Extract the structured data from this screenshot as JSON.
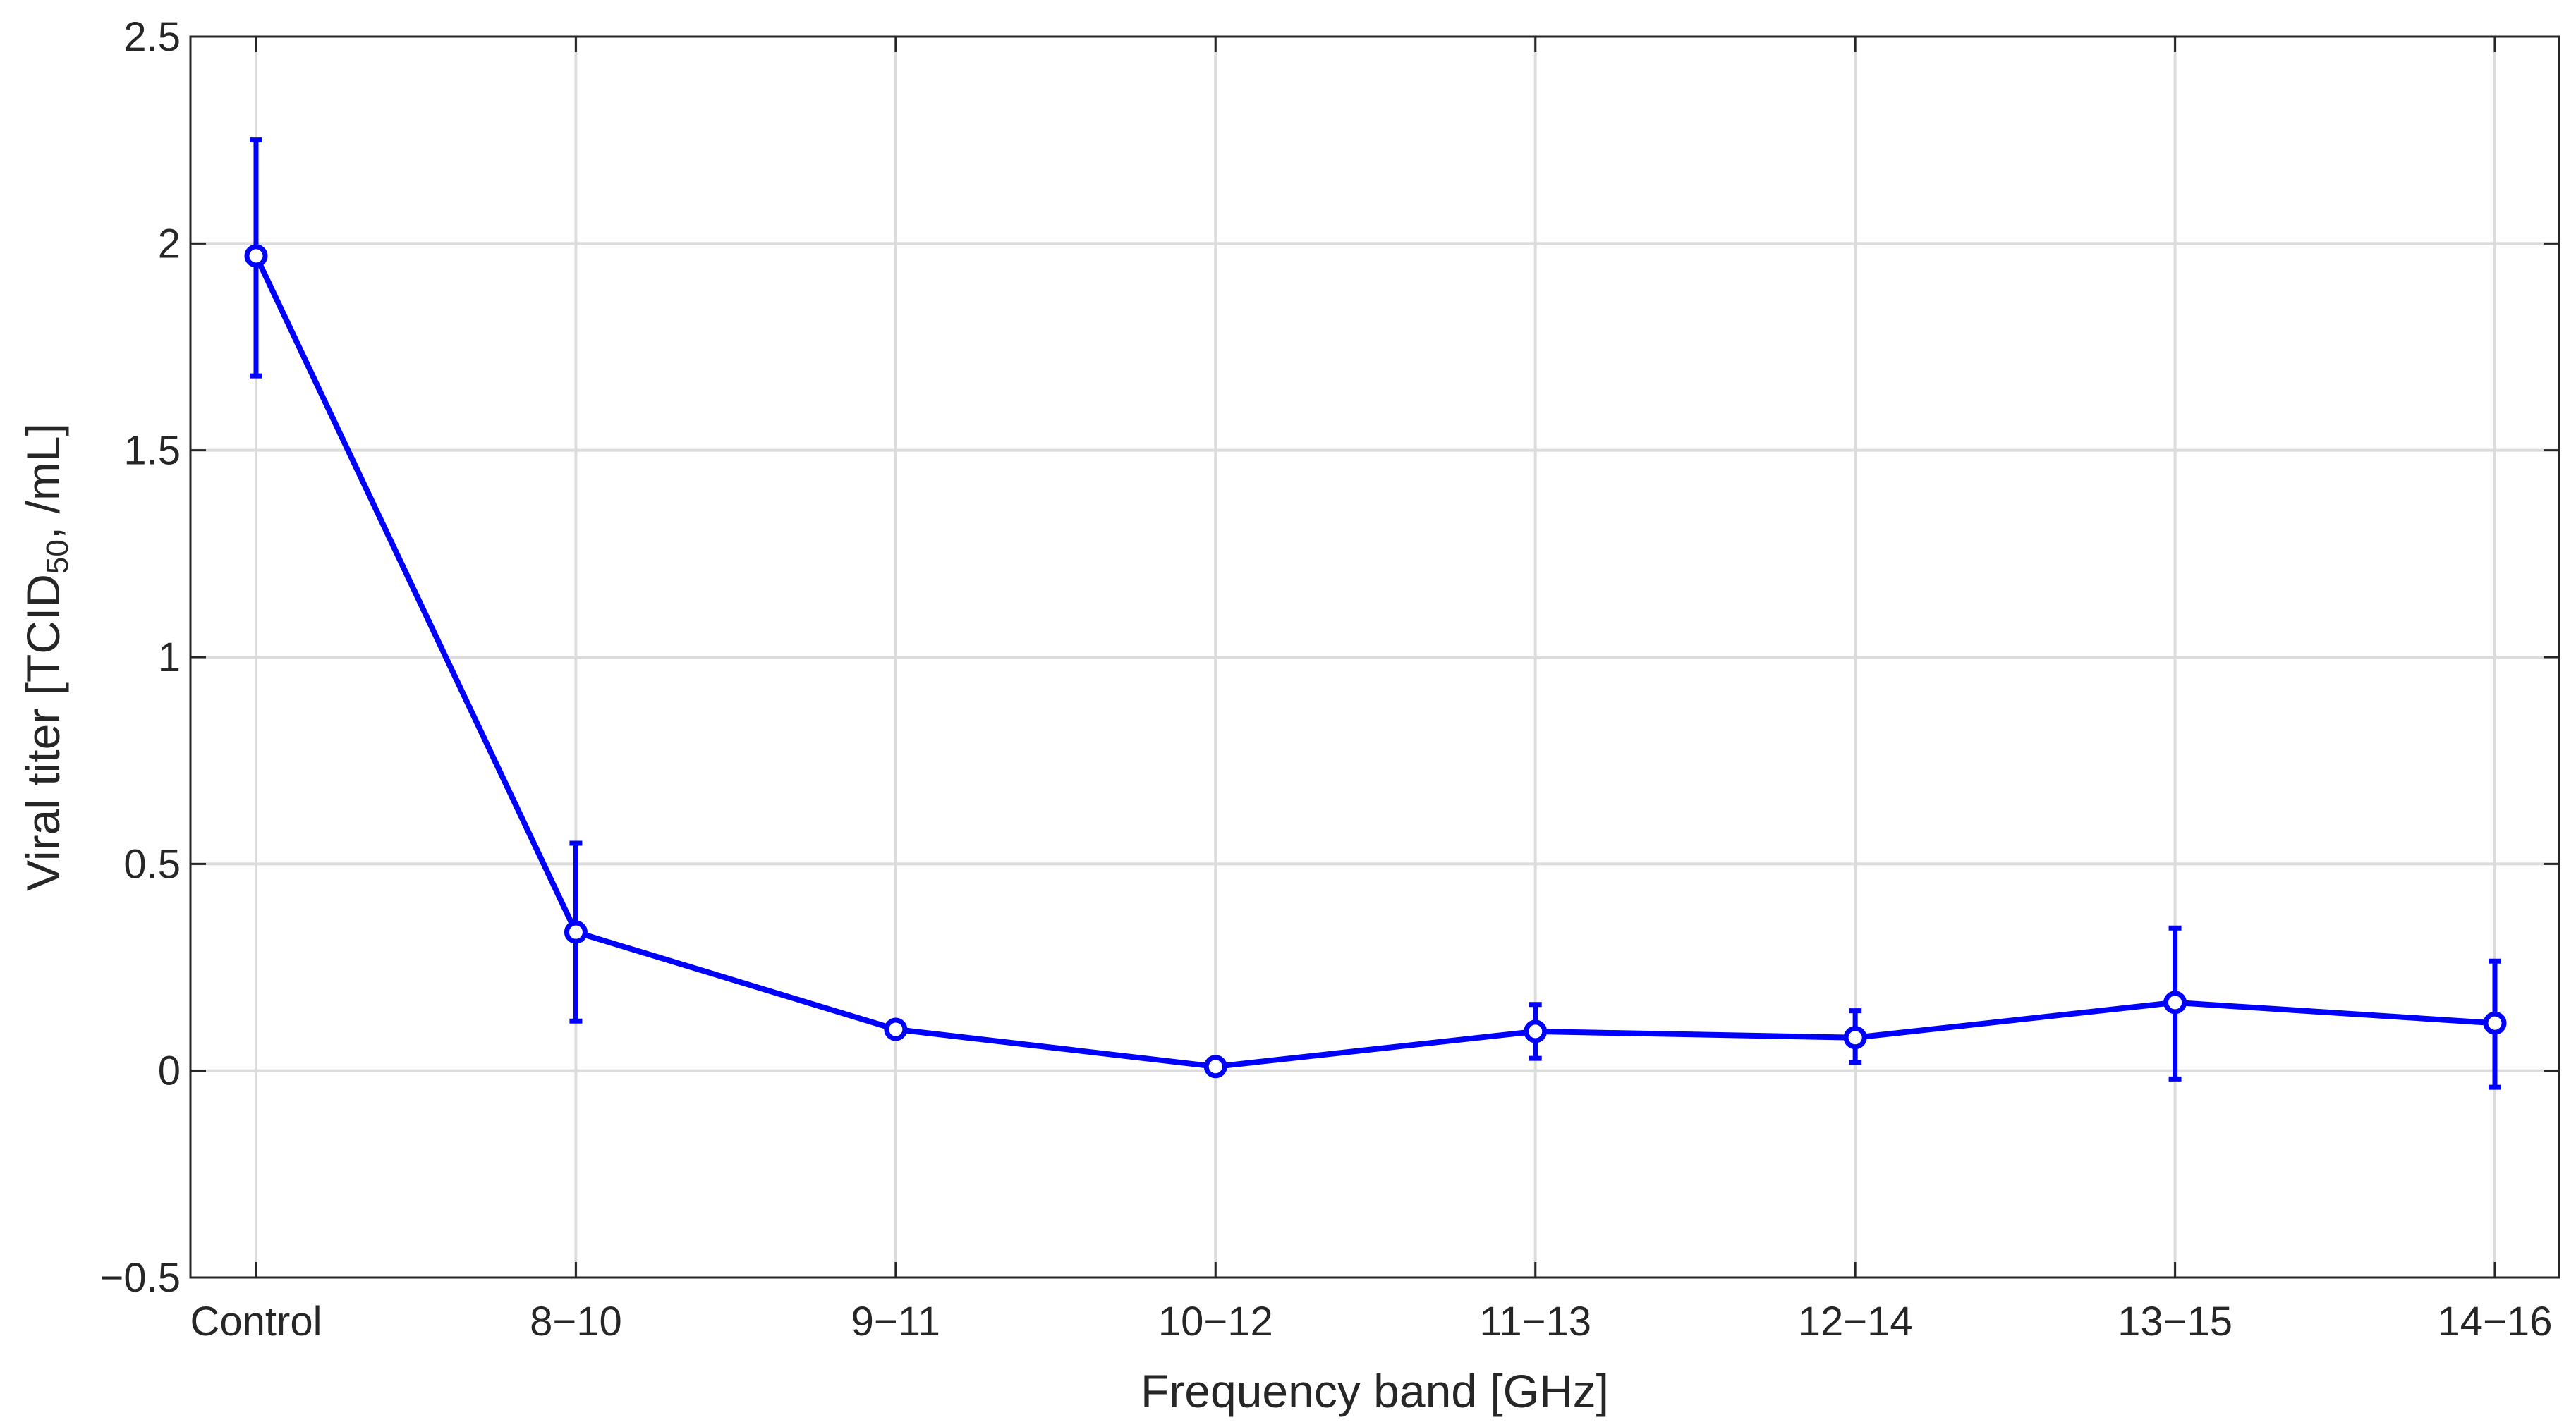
{
  "chart_data": {
    "type": "line",
    "xlabel": "Frequency band [GHz]",
    "ylabel_main": "Viral titer [TCID",
    "ylabel_sub": "50",
    "ylabel_end": ", /mL]",
    "categories": [
      "Control",
      "8−10",
      "9−11",
      "10−12",
      "11−13",
      "12−14",
      "13−15",
      "14−16"
    ],
    "series": [
      {
        "values": [
          1.97,
          0.335,
          0.1,
          0.01,
          0.095,
          0.08,
          0.165,
          0.115
        ],
        "error_low": [
          1.68,
          0.12,
          0.1,
          0.01,
          0.03,
          0.02,
          -0.02,
          -0.04
        ],
        "error_high": [
          2.25,
          0.55,
          0.1,
          0.01,
          0.16,
          0.145,
          0.345,
          0.265
        ],
        "color": "#0000ff"
      }
    ],
    "ylim": [
      -0.5,
      2.5
    ],
    "yticks": [
      -0.5,
      0,
      0.5,
      1,
      1.5,
      2,
      2.5
    ],
    "ytick_labels": [
      "−0.5",
      "0",
      "0.5",
      "1",
      "1.5",
      "2",
      "2.5"
    ],
    "grid": true,
    "legend": false,
    "marker": "circle"
  }
}
